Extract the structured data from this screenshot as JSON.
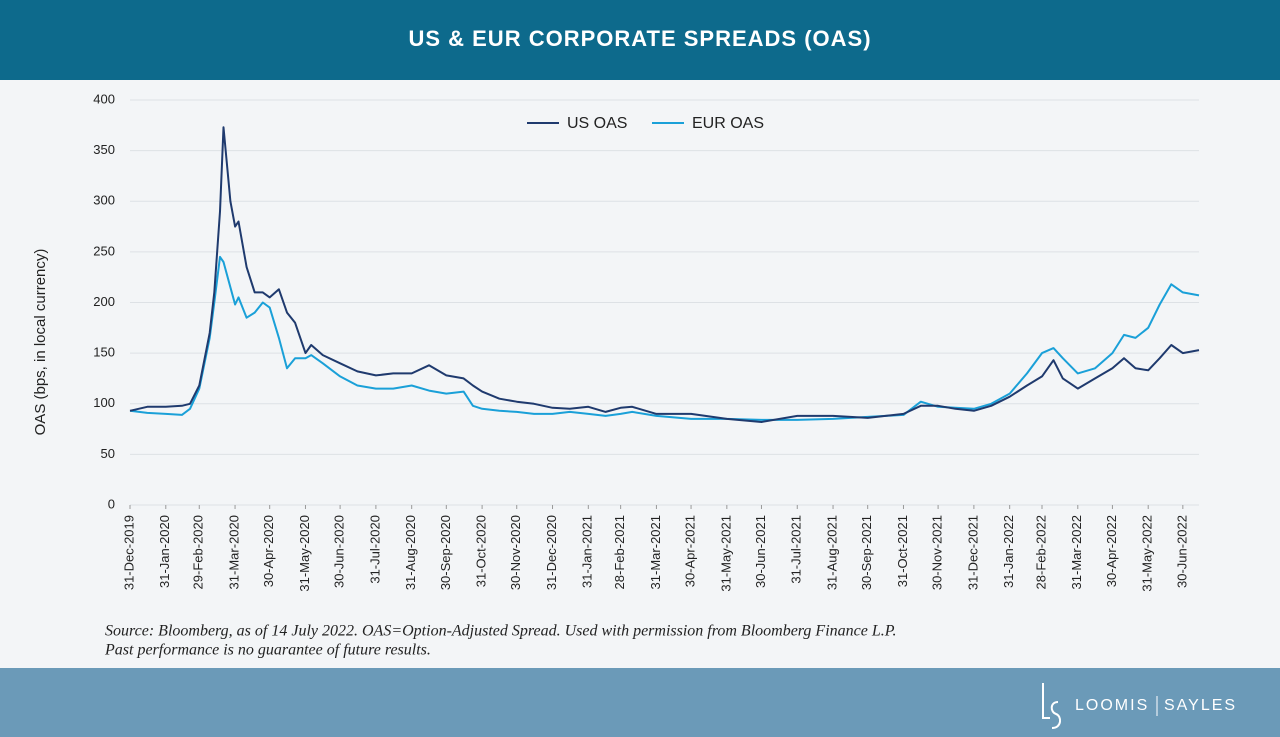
{
  "chart_data": {
    "type": "line",
    "title": "US & EUR CORPORATE SPREADS (OAS)",
    "y_label": "OAS (bps, in local currency)",
    "notes": [
      "Source: Bloomberg, as of 14 July 2022. OAS=Option-Adjusted Spread. Used with permission from Bloomberg Finance L.P.",
      "Past performance is no guarantee of future results."
    ],
    "brand": [
      "LOOMIS",
      "SAYLES"
    ],
    "legend": "top-center",
    "grid": true,
    "ylim": [
      0,
      400
    ],
    "yticks": [
      0,
      50,
      100,
      150,
      200,
      250,
      300,
      350,
      400
    ],
    "xlim": [
      "2019-12-31",
      "2022-07-14"
    ],
    "xticks": [
      {
        "value": "2019-12-31",
        "label": "31-Dec-2019"
      },
      {
        "value": "2020-01-31",
        "label": "31-Jan-2020"
      },
      {
        "value": "2020-02-29",
        "label": "29-Feb-2020"
      },
      {
        "value": "2020-03-31",
        "label": "31-Mar-2020"
      },
      {
        "value": "2020-04-30",
        "label": "30-Apr-2020"
      },
      {
        "value": "2020-05-31",
        "label": "31-May-2020"
      },
      {
        "value": "2020-06-30",
        "label": "30-Jun-2020"
      },
      {
        "value": "2020-07-31",
        "label": "31-Jul-2020"
      },
      {
        "value": "2020-08-31",
        "label": "31-Aug-2020"
      },
      {
        "value": "2020-09-30",
        "label": "30-Sep-2020"
      },
      {
        "value": "2020-10-31",
        "label": "31-Oct-2020"
      },
      {
        "value": "2020-11-30",
        "label": "30-Nov-2020"
      },
      {
        "value": "2020-12-31",
        "label": "31-Dec-2020"
      },
      {
        "value": "2021-01-31",
        "label": "31-Jan-2021"
      },
      {
        "value": "2021-02-28",
        "label": "28-Feb-2021"
      },
      {
        "value": "2021-03-31",
        "label": "31-Mar-2021"
      },
      {
        "value": "2021-04-30",
        "label": "30-Apr-2021"
      },
      {
        "value": "2021-05-31",
        "label": "31-May-2021"
      },
      {
        "value": "2021-06-30",
        "label": "30-Jun-2021"
      },
      {
        "value": "2021-07-31",
        "label": "31-Jul-2021"
      },
      {
        "value": "2021-08-31",
        "label": "31-Aug-2021"
      },
      {
        "value": "2021-09-30",
        "label": "30-Sep-2021"
      },
      {
        "value": "2021-10-31",
        "label": "31-Oct-2021"
      },
      {
        "value": "2021-11-30",
        "label": "30-Nov-2021"
      },
      {
        "value": "2021-12-31",
        "label": "31-Dec-2021"
      },
      {
        "value": "2022-01-31",
        "label": "31-Jan-2022"
      },
      {
        "value": "2022-02-28",
        "label": "28-Feb-2022"
      },
      {
        "value": "2022-03-31",
        "label": "31-Mar-2022"
      },
      {
        "value": "2022-04-30",
        "label": "30-Apr-2022"
      },
      {
        "value": "2022-05-31",
        "label": "31-May-2022"
      },
      {
        "value": "2022-06-30",
        "label": "30-Jun-2022"
      }
    ],
    "x": [
      "2019-12-31",
      "2020-01-15",
      "2020-01-31",
      "2020-02-14",
      "2020-02-21",
      "2020-02-29",
      "2020-03-09",
      "2020-03-13",
      "2020-03-18",
      "2020-03-21",
      "2020-03-27",
      "2020-03-31",
      "2020-04-03",
      "2020-04-10",
      "2020-04-17",
      "2020-04-24",
      "2020-04-30",
      "2020-05-08",
      "2020-05-15",
      "2020-05-22",
      "2020-05-31",
      "2020-06-05",
      "2020-06-15",
      "2020-06-30",
      "2020-07-15",
      "2020-07-31",
      "2020-08-15",
      "2020-08-31",
      "2020-09-15",
      "2020-09-30",
      "2020-10-15",
      "2020-10-23",
      "2020-10-31",
      "2020-11-15",
      "2020-11-30",
      "2020-12-15",
      "2020-12-31",
      "2021-01-15",
      "2021-01-31",
      "2021-02-15",
      "2021-02-28",
      "2021-03-10",
      "2021-03-31",
      "2021-04-30",
      "2021-05-31",
      "2021-06-30",
      "2021-07-31",
      "2021-08-31",
      "2021-09-30",
      "2021-10-31",
      "2021-11-15",
      "2021-11-30",
      "2021-12-15",
      "2021-12-31",
      "2022-01-15",
      "2022-01-31",
      "2022-02-15",
      "2022-02-28",
      "2022-03-10",
      "2022-03-18",
      "2022-03-31",
      "2022-04-15",
      "2022-04-30",
      "2022-05-10",
      "2022-05-20",
      "2022-05-31",
      "2022-06-10",
      "2022-06-20",
      "2022-06-30",
      "2022-07-14"
    ],
    "series": [
      {
        "name": "US OAS",
        "color": "#1f3a6e",
        "values": [
          93,
          97,
          97,
          98,
          100,
          118,
          170,
          210,
          290,
          373,
          300,
          275,
          280,
          235,
          210,
          210,
          205,
          213,
          190,
          180,
          150,
          158,
          148,
          140,
          132,
          128,
          130,
          130,
          138,
          128,
          125,
          118,
          112,
          105,
          102,
          100,
          96,
          95,
          97,
          92,
          96,
          97,
          90,
          90,
          85,
          82,
          88,
          88,
          86,
          90,
          98,
          98,
          95,
          93,
          98,
          107,
          118,
          127,
          143,
          125,
          115,
          125,
          135,
          145,
          135,
          133,
          145,
          158,
          150,
          153
        ]
      },
      {
        "name": "EUR OAS",
        "color": "#1aa0d8",
        "values": [
          93,
          91,
          90,
          89,
          95,
          115,
          165,
          200,
          245,
          240,
          215,
          198,
          205,
          185,
          190,
          200,
          195,
          165,
          135,
          145,
          145,
          148,
          140,
          127,
          118,
          115,
          115,
          118,
          113,
          110,
          112,
          98,
          95,
          93,
          92,
          90,
          90,
          92,
          90,
          88,
          90,
          92,
          88,
          85,
          85,
          84,
          84,
          85,
          87,
          89,
          102,
          97,
          96,
          95,
          100,
          110,
          130,
          150,
          155,
          145,
          130,
          135,
          150,
          168,
          165,
          175,
          198,
          218,
          210,
          207
        ]
      }
    ]
  }
}
